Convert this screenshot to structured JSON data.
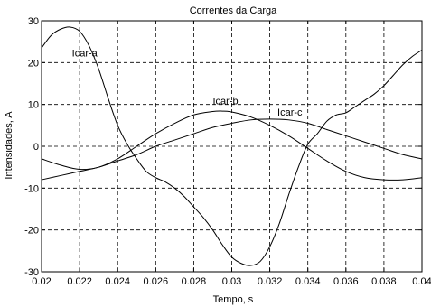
{
  "chart_data": {
    "type": "line",
    "title": "Correntes da Carga",
    "xlabel": "Tempo, s",
    "ylabel": "Intensidades, A",
    "xlim": [
      0.02,
      0.04
    ],
    "ylim": [
      -30,
      30
    ],
    "xticks": [
      0.02,
      0.022,
      0.024,
      0.026,
      0.028,
      0.03,
      0.032,
      0.034,
      0.036,
      0.038,
      0.04
    ],
    "xtick_labels": [
      "0.02",
      "0.022",
      "0.024",
      "0.026",
      "0.028",
      "0.03",
      "0.032",
      "0.034",
      "0.036",
      "0.038",
      "0.04"
    ],
    "yticks": [
      -30,
      -20,
      -10,
      0,
      10,
      20,
      30
    ],
    "ytick_labels": [
      "-30",
      "-20",
      "-10",
      "0",
      "10",
      "20",
      "30"
    ],
    "grid": true,
    "series": [
      {
        "name": "Icar-a",
        "color": "#000000",
        "x": [
          0.02,
          0.0205,
          0.021,
          0.0215,
          0.022,
          0.0225,
          0.023,
          0.0235,
          0.024,
          0.0245,
          0.025,
          0.0255,
          0.026,
          0.0265,
          0.027,
          0.0275,
          0.028,
          0.0285,
          0.029,
          0.0295,
          0.03,
          0.0305,
          0.031,
          0.0315,
          0.032,
          0.0325,
          0.033,
          0.0335,
          0.034,
          0.0345,
          0.035,
          0.0355,
          0.036,
          0.0365,
          0.037,
          0.0375,
          0.038,
          0.0385,
          0.039,
          0.0395,
          0.04
        ],
        "y": [
          23.5,
          26.5,
          28,
          28.5,
          27.5,
          24,
          18.5,
          11.5,
          5,
          0.5,
          -3,
          -6,
          -7.5,
          -8.5,
          -10,
          -12,
          -14.5,
          -17,
          -20,
          -23.5,
          -26.5,
          -28,
          -28.5,
          -27.5,
          -24,
          -18.5,
          -11.5,
          -5,
          0.5,
          3,
          6,
          7.5,
          8,
          9.5,
          11,
          12.5,
          14.5,
          17,
          19.5,
          21.5,
          23
        ]
      },
      {
        "name": "Icar-b",
        "color": "#000000",
        "x": [
          0.02,
          0.021,
          0.022,
          0.023,
          0.024,
          0.025,
          0.026,
          0.027,
          0.028,
          0.029,
          0.0295,
          0.03,
          0.031,
          0.032,
          0.033,
          0.034,
          0.035,
          0.036,
          0.037,
          0.038,
          0.039,
          0.04
        ],
        "y": [
          -3,
          -4.5,
          -5.5,
          -5,
          -3,
          0,
          3,
          5.5,
          7.5,
          8.3,
          8.4,
          8.2,
          7,
          5,
          2.5,
          -0.5,
          -3.5,
          -6,
          -7.5,
          -8,
          -8,
          -7.5
        ]
      },
      {
        "name": "Icar-c",
        "color": "#000000",
        "x": [
          0.02,
          0.021,
          0.022,
          0.023,
          0.024,
          0.025,
          0.026,
          0.027,
          0.028,
          0.029,
          0.03,
          0.031,
          0.032,
          0.033,
          0.034,
          0.035,
          0.036,
          0.037,
          0.038,
          0.039,
          0.04
        ],
        "y": [
          -8,
          -7,
          -6,
          -5,
          -3.5,
          -2,
          0,
          1.5,
          3,
          4.5,
          5.5,
          6.3,
          6.5,
          6.3,
          5.5,
          4,
          2.5,
          1,
          -0.5,
          -2,
          -3
        ]
      }
    ],
    "annotations": [
      {
        "text": "Icar-a",
        "x": 0.0216,
        "y": 21.5
      },
      {
        "text": "Icar-b",
        "x": 0.029,
        "y": 10.0
      },
      {
        "text": "Icar-c",
        "x": 0.0324,
        "y": 7.3
      }
    ]
  }
}
